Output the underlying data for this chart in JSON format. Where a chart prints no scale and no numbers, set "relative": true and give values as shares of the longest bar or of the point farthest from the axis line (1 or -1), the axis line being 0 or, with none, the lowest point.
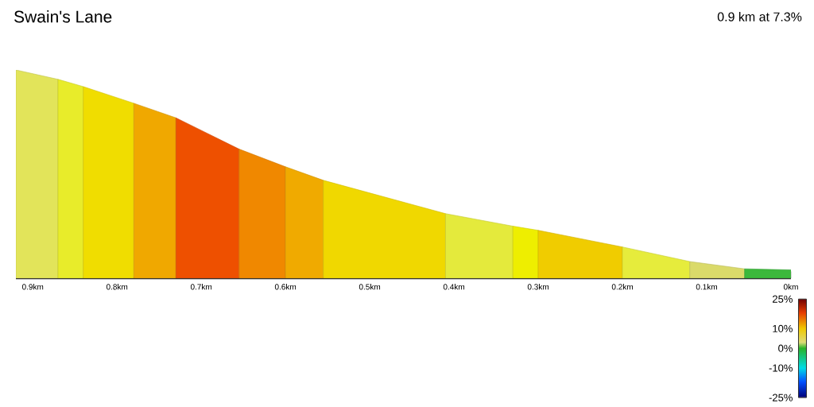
{
  "chart_data": {
    "type": "area",
    "title": "Swain's Lane",
    "subtitle": "0.9 km at 7.3%",
    "relative": true,
    "series": [
      {
        "color": "#e2e45a",
        "x": [
          0.92,
          0.87
        ],
        "values": [
          1,
          0.955
        ]
      },
      {
        "color": "#e8ec2a",
        "x": [
          0.87,
          0.84
        ],
        "values": [
          0.955,
          0.92
        ]
      },
      {
        "color": "#f0dd00",
        "x": [
          0.84,
          0.78
        ],
        "values": [
          0.92,
          0.84
        ]
      },
      {
        "color": "#f0a800",
        "x": [
          0.78,
          0.73
        ],
        "values": [
          0.84,
          0.77
        ]
      },
      {
        "color": "#ee5000",
        "x": [
          0.73,
          0.655
        ],
        "values": [
          0.77,
          0.62
        ]
      },
      {
        "color": "#f08800",
        "x": [
          0.655,
          0.6
        ],
        "values": [
          0.62,
          0.535
        ]
      },
      {
        "color": "#f0aa00",
        "x": [
          0.6,
          0.555
        ],
        "values": [
          0.535,
          0.47
        ]
      },
      {
        "color": "#f0d800",
        "x": [
          0.555,
          0.41
        ],
        "values": [
          0.47,
          0.31
        ]
      },
      {
        "color": "#e4ea3c",
        "x": [
          0.41,
          0.33
        ],
        "values": [
          0.31,
          0.25
        ]
      },
      {
        "color": "#eeee00",
        "x": [
          0.33,
          0.3
        ],
        "values": [
          0.25,
          0.23
        ]
      },
      {
        "color": "#f0cc00",
        "x": [
          0.3,
          0.2
        ],
        "values": [
          0.23,
          0.15
        ]
      },
      {
        "color": "#e6ec3c",
        "x": [
          0.2,
          0.12
        ],
        "values": [
          0.15,
          0.08
        ]
      },
      {
        "color": "#dada6a",
        "x": [
          0.12,
          0.055
        ],
        "values": [
          0.08,
          0.045
        ]
      },
      {
        "color": "#3cb83c",
        "x": [
          0.055,
          0
        ],
        "values": [
          0.045,
          0.04
        ]
      }
    ],
    "xlim": [
      0.92,
      0
    ],
    "xticks": [
      {
        "value": 0.9,
        "label": "0.9km"
      },
      {
        "value": 0.8,
        "label": "0.8km"
      },
      {
        "value": 0.7,
        "label": "0.7km"
      },
      {
        "value": 0.6,
        "label": "0.6km"
      },
      {
        "value": 0.5,
        "label": "0.5km"
      },
      {
        "value": 0.4,
        "label": "0.4km"
      },
      {
        "value": 0.3,
        "label": "0.3km"
      },
      {
        "value": 0.2,
        "label": "0.2km"
      },
      {
        "value": 0.1,
        "label": "0.1km"
      },
      {
        "value": 0,
        "label": "0km"
      }
    ],
    "clim": [
      -25,
      25
    ],
    "cticks": [
      {
        "value": 25,
        "label": "25%"
      },
      {
        "value": 10,
        "label": "10%"
      },
      {
        "value": 0,
        "label": "0%"
      },
      {
        "value": -10,
        "label": "-10%"
      },
      {
        "value": -25,
        "label": "-25%"
      }
    ]
  }
}
